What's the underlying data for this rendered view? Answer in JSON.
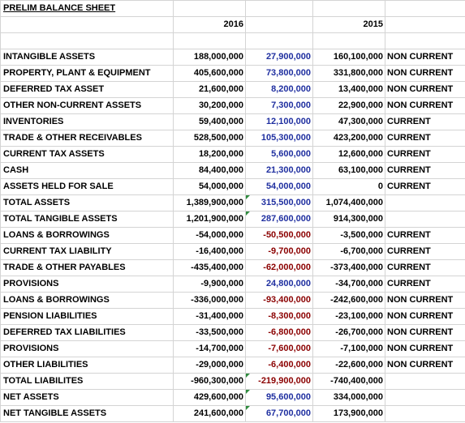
{
  "sheet": {
    "title": "PRELIM BALANCE SHEET",
    "year_2016": "2016",
    "year_2015": "2015",
    "rows": [
      {
        "label": "INTANGIBLE ASSETS",
        "v2016": "188,000,000",
        "change": "27,900,000",
        "change_color": "blue",
        "v2015": "160,100,000",
        "category": "NON CURRENT",
        "flag": false
      },
      {
        "label": "PROPERTY, PLANT & EQUIPMENT",
        "v2016": "405,600,000",
        "change": "73,800,000",
        "change_color": "blue",
        "v2015": "331,800,000",
        "category": "NON CURRENT",
        "flag": false
      },
      {
        "label": "DEFERRED TAX ASSET",
        "v2016": "21,600,000",
        "change": "8,200,000",
        "change_color": "blue",
        "v2015": "13,400,000",
        "category": "NON CURRENT",
        "flag": false
      },
      {
        "label": "OTHER NON-CURRENT ASSETS",
        "v2016": "30,200,000",
        "change": "7,300,000",
        "change_color": "blue",
        "v2015": "22,900,000",
        "category": "NON CURRENT",
        "flag": false
      },
      {
        "label": "INVENTORIES",
        "v2016": "59,400,000",
        "change": "12,100,000",
        "change_color": "blue",
        "v2015": "47,300,000",
        "category": "CURRENT",
        "flag": false
      },
      {
        "label": "TRADE & OTHER RECEIVABLES",
        "v2016": "528,500,000",
        "change": "105,300,000",
        "change_color": "blue",
        "v2015": "423,200,000",
        "category": "CURRENT",
        "flag": false
      },
      {
        "label": "CURRENT TAX ASSETS",
        "v2016": "18,200,000",
        "change": "5,600,000",
        "change_color": "blue",
        "v2015": "12,600,000",
        "category": "CURRENT",
        "flag": false
      },
      {
        "label": "CASH",
        "v2016": "84,400,000",
        "change": "21,300,000",
        "change_color": "blue",
        "v2015": "63,100,000",
        "category": "CURRENT",
        "flag": false
      },
      {
        "label": "ASSETS HELD FOR SALE",
        "v2016": "54,000,000",
        "change": "54,000,000",
        "change_color": "blue",
        "v2015": "0",
        "category": "CURRENT",
        "flag": false
      },
      {
        "label": "TOTAL ASSETS",
        "v2016": "1,389,900,000",
        "change": "315,500,000",
        "change_color": "blue",
        "v2015": "1,074,400,000",
        "category": "",
        "flag": true
      },
      {
        "label": "TOTAL TANGIBLE ASSETS",
        "v2016": "1,201,900,000",
        "change": "287,600,000",
        "change_color": "blue",
        "v2015": "914,300,000",
        "category": "",
        "flag": true
      },
      {
        "label": "LOANS & BORROWINGS",
        "v2016": "-54,000,000",
        "change": "-50,500,000",
        "change_color": "red",
        "v2015": "-3,500,000",
        "category": "CURRENT",
        "flag": false
      },
      {
        "label": "CURRENT TAX LIABILITY",
        "v2016": "-16,400,000",
        "change": "-9,700,000",
        "change_color": "red",
        "v2015": "-6,700,000",
        "category": "CURRENT",
        "flag": false
      },
      {
        "label": "TRADE & OTHER PAYABLES",
        "v2016": "-435,400,000",
        "change": "-62,000,000",
        "change_color": "red",
        "v2015": "-373,400,000",
        "category": "CURRENT",
        "flag": false
      },
      {
        "label": "PROVISIONS",
        "v2016": "-9,900,000",
        "change": "24,800,000",
        "change_color": "blue",
        "v2015": "-34,700,000",
        "category": "CURRENT",
        "flag": false
      },
      {
        "label": "LOANS & BORROWINGS",
        "v2016": "-336,000,000",
        "change": "-93,400,000",
        "change_color": "red",
        "v2015": "-242,600,000",
        "category": "NON CURRENT",
        "flag": false
      },
      {
        "label": "PENSION LIABILITIES",
        "v2016": "-31,400,000",
        "change": "-8,300,000",
        "change_color": "red",
        "v2015": "-23,100,000",
        "category": "NON CURRENT",
        "flag": false
      },
      {
        "label": "DEFERRED TAX LIABILITIES",
        "v2016": "-33,500,000",
        "change": "-6,800,000",
        "change_color": "red",
        "v2015": "-26,700,000",
        "category": "NON CURRENT",
        "flag": false
      },
      {
        "label": "PROVISIONS",
        "v2016": "-14,700,000",
        "change": "-7,600,000",
        "change_color": "red",
        "v2015": "-7,100,000",
        "category": "NON CURRENT",
        "flag": false
      },
      {
        "label": "OTHER LIABILITIES",
        "v2016": "-29,000,000",
        "change": "-6,400,000",
        "change_color": "red",
        "v2015": "-22,600,000",
        "category": "NON CURRENT",
        "flag": false
      },
      {
        "label": "TOTAL LIABILITES",
        "v2016": "-960,300,000",
        "change": "-219,900,000",
        "change_color": "red",
        "v2015": "-740,400,000",
        "category": "",
        "flag": true
      },
      {
        "label": "NET ASSETS",
        "v2016": "429,600,000",
        "change": "95,600,000",
        "change_color": "blue",
        "v2015": "334,000,000",
        "category": "",
        "flag": true
      },
      {
        "label": "NET TANGIBLE ASSETS",
        "v2016": "241,600,000",
        "change": "67,700,000",
        "change_color": "blue",
        "v2015": "173,900,000",
        "category": "",
        "flag": true
      }
    ]
  },
  "colors": {
    "positive_change": "#1f2fa0",
    "negative_change": "#8b0000",
    "gridline": "#d4d4d4",
    "comment_flag": "#2e8b3e"
  }
}
